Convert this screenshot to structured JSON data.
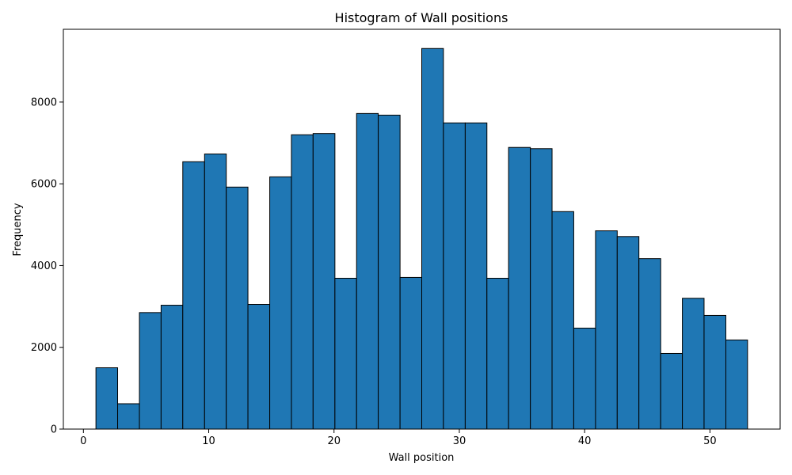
{
  "chart_data": {
    "type": "bar",
    "title": "Histogram of Wall positions",
    "xlabel": "Wall position",
    "ylabel": "Frequency",
    "xlim": [
      -1.6,
      55.6
    ],
    "ylim": [
      0,
      9780
    ],
    "x_ticks": [
      0,
      10,
      20,
      30,
      40,
      50
    ],
    "y_ticks": [
      0,
      2000,
      4000,
      6000,
      8000
    ],
    "grid": false,
    "bar_color": "#1f77b4",
    "edge_color": "#000000",
    "bins": [
      {
        "x0": 1.0,
        "x1": 2.73,
        "value": 1500
      },
      {
        "x0": 2.73,
        "x1": 4.47,
        "value": 620
      },
      {
        "x0": 4.47,
        "x1": 6.2,
        "value": 2850
      },
      {
        "x0": 6.2,
        "x1": 7.93,
        "value": 3030
      },
      {
        "x0": 7.93,
        "x1": 9.67,
        "value": 6540
      },
      {
        "x0": 9.67,
        "x1": 11.4,
        "value": 6730
      },
      {
        "x0": 11.4,
        "x1": 13.13,
        "value": 5920
      },
      {
        "x0": 13.13,
        "x1": 14.87,
        "value": 3050
      },
      {
        "x0": 14.87,
        "x1": 16.6,
        "value": 6170
      },
      {
        "x0": 16.6,
        "x1": 18.33,
        "value": 7200
      },
      {
        "x0": 18.33,
        "x1": 20.07,
        "value": 7230
      },
      {
        "x0": 20.07,
        "x1": 21.8,
        "value": 3690
      },
      {
        "x0": 21.8,
        "x1": 23.53,
        "value": 7720
      },
      {
        "x0": 23.53,
        "x1": 25.27,
        "value": 7680
      },
      {
        "x0": 25.27,
        "x1": 27.0,
        "value": 3710
      },
      {
        "x0": 27.0,
        "x1": 28.73,
        "value": 9310
      },
      {
        "x0": 28.73,
        "x1": 30.47,
        "value": 7490
      },
      {
        "x0": 30.47,
        "x1": 32.2,
        "value": 7490
      },
      {
        "x0": 32.2,
        "x1": 33.93,
        "value": 3690
      },
      {
        "x0": 33.93,
        "x1": 35.67,
        "value": 6890
      },
      {
        "x0": 35.67,
        "x1": 37.4,
        "value": 6860
      },
      {
        "x0": 37.4,
        "x1": 39.13,
        "value": 5320
      },
      {
        "x0": 39.13,
        "x1": 40.87,
        "value": 2470
      },
      {
        "x0": 40.87,
        "x1": 42.6,
        "value": 4850
      },
      {
        "x0": 42.6,
        "x1": 44.33,
        "value": 4710
      },
      {
        "x0": 44.33,
        "x1": 46.07,
        "value": 4170
      },
      {
        "x0": 46.07,
        "x1": 47.8,
        "value": 1850
      },
      {
        "x0": 47.8,
        "x1": 49.53,
        "value": 3200
      },
      {
        "x0": 49.53,
        "x1": 51.27,
        "value": 2780
      },
      {
        "x0": 51.27,
        "x1": 53.0,
        "value": 2180
      }
    ]
  }
}
